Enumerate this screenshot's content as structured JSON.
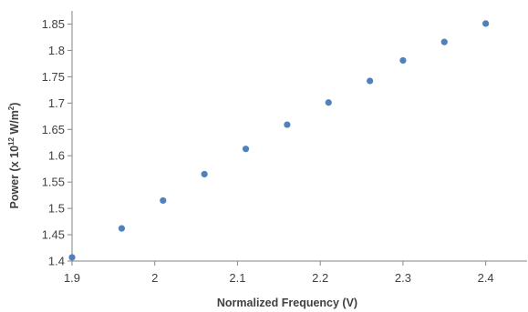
{
  "chart_data": {
    "type": "scatter",
    "xlabel": "Normalized Frequency (V)",
    "ylabel": {
      "prefix": "Power (x 10",
      "exp": "12",
      "unit": " W/m",
      "unit_exp": "2",
      "suffix": ")"
    },
    "xlim": [
      1.9,
      2.45
    ],
    "ylim": [
      1.4,
      1.875
    ],
    "x_ticks": [
      "1.9",
      "2",
      "2.1",
      "2.2",
      "2.3",
      "2.4"
    ],
    "y_ticks": [
      "1.4",
      "1.45",
      "1.5",
      "1.55",
      "1.6",
      "1.65",
      "1.7",
      "1.75",
      "1.8",
      "1.85"
    ],
    "grid": false,
    "marker_color": "#4F81BD",
    "series": [
      {
        "x": [
          1.9,
          1.96,
          2.01,
          2.06,
          2.11,
          2.16,
          2.21,
          2.26,
          2.3,
          2.35,
          2.4
        ],
        "y": [
          1.407,
          1.462,
          1.515,
          1.565,
          1.613,
          1.659,
          1.701,
          1.742,
          1.781,
          1.816,
          1.851
        ]
      }
    ]
  }
}
